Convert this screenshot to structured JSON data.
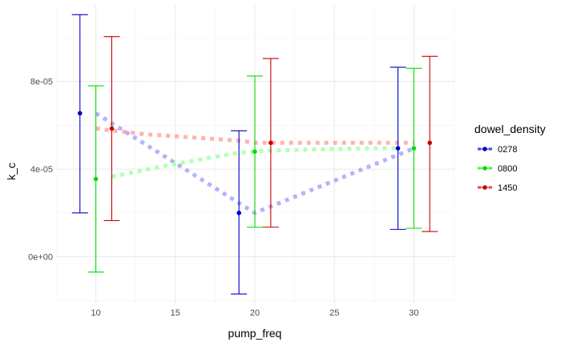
{
  "chart_data": {
    "type": "scatter",
    "xlabel": "pump_freq",
    "ylabel": "k_c",
    "xlim": [
      7.5,
      32.6
    ],
    "ylim": [
      -2.1e-05,
      0.000115
    ],
    "x_ticks": [
      10,
      15,
      20,
      25,
      30
    ],
    "x_tick_labels": [
      "10",
      "15",
      "20",
      "25",
      "30"
    ],
    "y_ticks": [
      0,
      4e-05,
      8e-05
    ],
    "y_tick_labels": [
      "0e+00",
      "4e-05",
      "8e-05"
    ],
    "grid": true,
    "legend": {
      "title": "dowel_density",
      "position": "right"
    },
    "series": [
      {
        "name": "0278",
        "color": "#0000cc",
        "line_color": "#9999ff",
        "points": [
          {
            "x": 9,
            "y": 6.55e-05,
            "ymin": 2e-05,
            "ymax": 0.0001105
          },
          {
            "x": 19,
            "y": 2e-05,
            "ymin": -1.7e-05,
            "ymax": 5.75e-05
          },
          {
            "x": 29,
            "y": 4.95e-05,
            "ymin": 1.25e-05,
            "ymax": 8.65e-05
          }
        ],
        "trend": [
          {
            "x": 10,
            "y": 6.55e-05
          },
          {
            "x": 20,
            "y": 2e-05
          },
          {
            "x": 30,
            "y": 4.95e-05
          }
        ]
      },
      {
        "name": "0800",
        "color": "#00dd00",
        "line_color": "#99ff99",
        "points": [
          {
            "x": 10,
            "y": 3.55e-05,
            "ymin": -7e-06,
            "ymax": 7.8e-05
          },
          {
            "x": 20,
            "y": 4.8e-05,
            "ymin": 1.35e-05,
            "ymax": 8.25e-05
          },
          {
            "x": 30,
            "y": 4.95e-05,
            "ymin": 1.3e-05,
            "ymax": 8.6e-05
          }
        ],
        "trend": [
          {
            "x": 11,
            "y": 3.65e-05
          },
          {
            "x": 14,
            "y": 4.1e-05
          },
          {
            "x": 17,
            "y": 4.5e-05
          },
          {
            "x": 19,
            "y": 4.75e-05
          },
          {
            "x": 21,
            "y": 4.85e-05
          },
          {
            "x": 24,
            "y": 4.9e-05
          },
          {
            "x": 27,
            "y": 4.95e-05
          },
          {
            "x": 29,
            "y": 4.95e-05
          }
        ]
      },
      {
        "name": "1450",
        "color": "#cc0000",
        "line_color": "#ff9999",
        "points": [
          {
            "x": 11,
            "y": 5.85e-05,
            "ymin": 1.65e-05,
            "ymax": 0.0001005
          },
          {
            "x": 21,
            "y": 5.2e-05,
            "ymin": 1.35e-05,
            "ymax": 9.05e-05
          },
          {
            "x": 31,
            "y": 5.2e-05,
            "ymin": 1.15e-05,
            "ymax": 9.15e-05
          }
        ],
        "trend": [
          {
            "x": 10,
            "y": 5.85e-05
          },
          {
            "x": 13,
            "y": 5.6e-05
          },
          {
            "x": 16,
            "y": 5.45e-05
          },
          {
            "x": 19,
            "y": 5.3e-05
          },
          {
            "x": 20,
            "y": 5.2e-05
          },
          {
            "x": 25,
            "y": 5.2e-05
          },
          {
            "x": 30,
            "y": 5.2e-05
          }
        ]
      }
    ]
  }
}
